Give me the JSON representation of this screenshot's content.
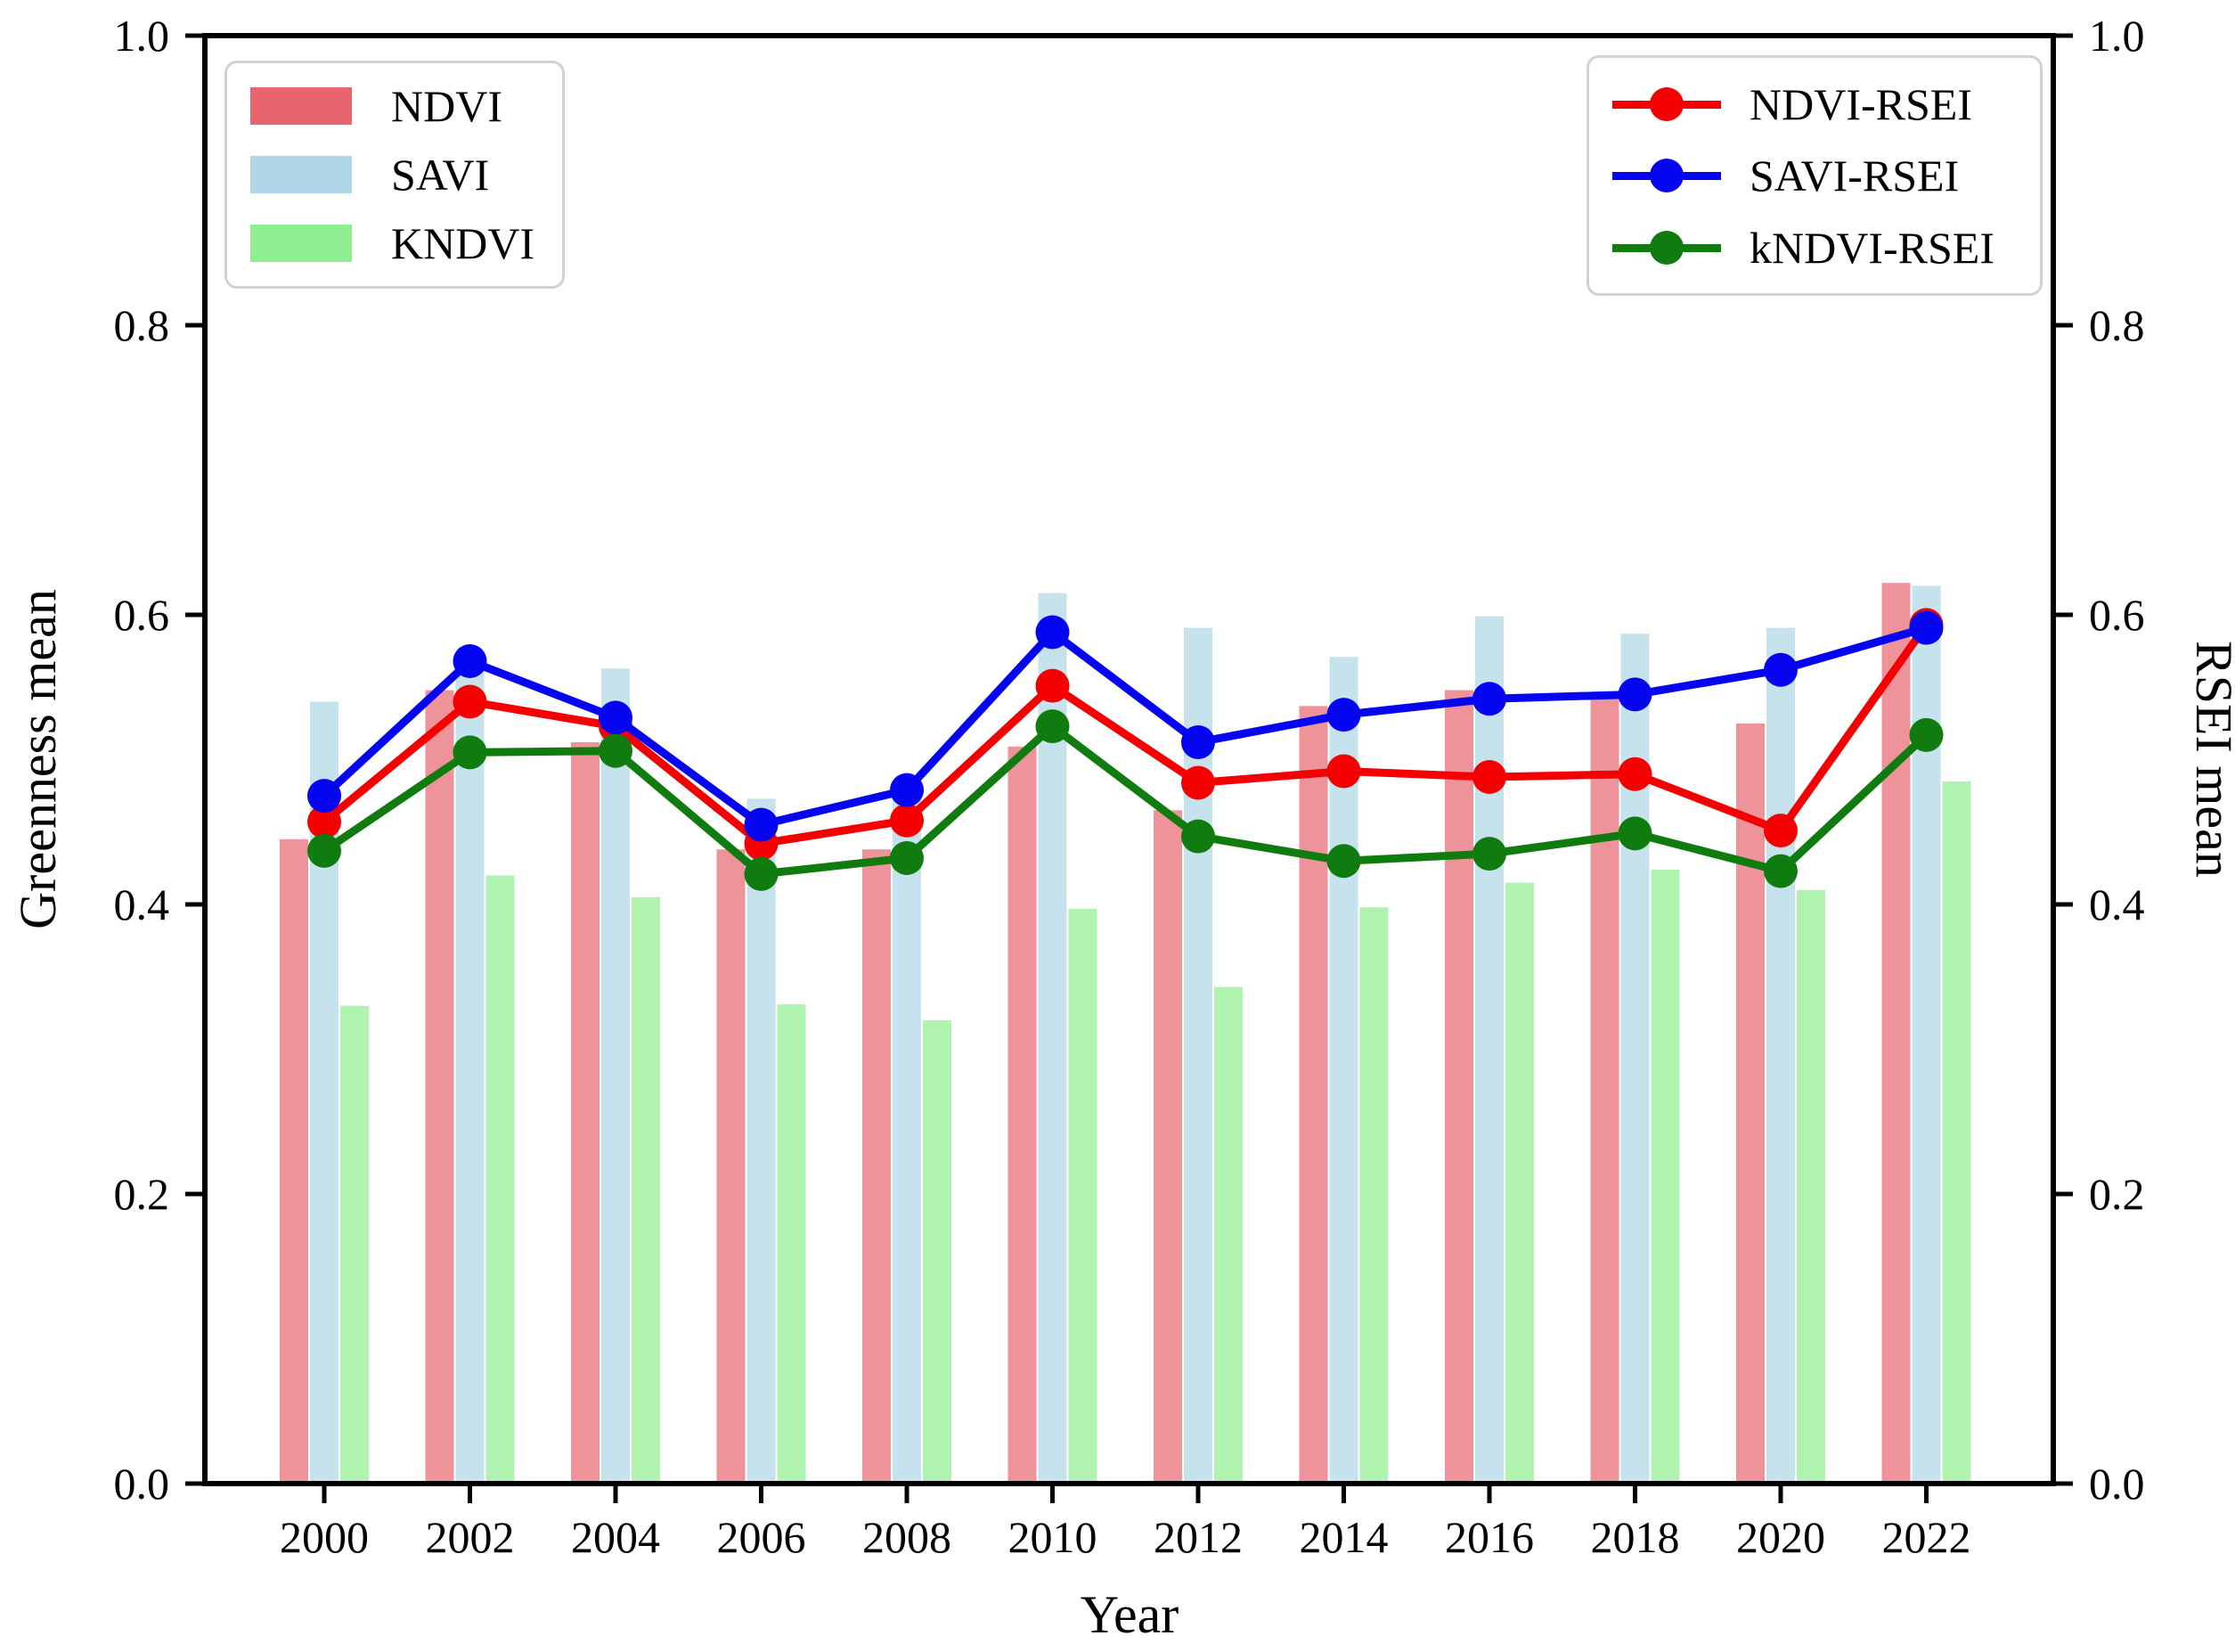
{
  "figure": {
    "background": "#ffffff"
  },
  "chart_data": {
    "type": "bar+line",
    "title": "",
    "xlabel": "Year",
    "ylabel_left": "Greenness mean",
    "ylabel_right": "RSEI mean",
    "ylim": [
      0.0,
      1.0
    ],
    "yticks": [
      "0.0",
      "0.2",
      "0.4",
      "0.6",
      "0.8",
      "1.0"
    ],
    "grid": false,
    "bar_alpha": 0.7,
    "categories": [
      "2000",
      "2002",
      "2004",
      "2006",
      "2008",
      "2010",
      "2012",
      "2014",
      "2016",
      "2018",
      "2020",
      "2022"
    ],
    "bar_series": [
      {
        "name": "NDVI",
        "axis": "left",
        "color": "#e86570",
        "values": [
          0.445,
          0.548,
          0.512,
          0.438,
          0.438,
          0.509,
          0.465,
          0.537,
          0.548,
          0.542,
          0.525,
          0.622
        ]
      },
      {
        "name": "SAVI",
        "axis": "left",
        "color": "#aed6e6",
        "values": [
          0.54,
          0.565,
          0.563,
          0.473,
          0.475,
          0.615,
          0.591,
          0.571,
          0.599,
          0.587,
          0.591,
          0.62
        ]
      },
      {
        "name": "KNDVI",
        "axis": "left",
        "color": "#8fee8f",
        "values": [
          0.33,
          0.42,
          0.405,
          0.331,
          0.32,
          0.397,
          0.343,
          0.398,
          0.415,
          0.424,
          0.41,
          0.485
        ]
      }
    ],
    "line_series": [
      {
        "name": "NDVI-RSEI",
        "axis": "right",
        "color": "#f50000",
        "values": [
          0.457,
          0.54,
          0.523,
          0.442,
          0.458,
          0.551,
          0.484,
          0.492,
          0.488,
          0.49,
          0.451,
          0.593
        ]
      },
      {
        "name": "SAVI-RSEI",
        "axis": "right",
        "color": "#0505f0",
        "values": [
          0.475,
          0.568,
          0.529,
          0.455,
          0.479,
          0.588,
          0.512,
          0.531,
          0.542,
          0.545,
          0.562,
          0.591
        ]
      },
      {
        "name": "kNDVI-RSEI",
        "axis": "right",
        "color": "#107c10",
        "values": [
          0.437,
          0.505,
          0.506,
          0.421,
          0.432,
          0.523,
          0.447,
          0.43,
          0.435,
          0.449,
          0.423,
          0.517
        ]
      }
    ],
    "legend_left": {
      "position": "upper left",
      "items": [
        "NDVI",
        "SAVI",
        "KNDVI"
      ]
    },
    "legend_right": {
      "position": "upper right",
      "items": [
        "NDVI-RSEI",
        "SAVI-RSEI",
        "kNDVI-RSEI"
      ]
    }
  }
}
